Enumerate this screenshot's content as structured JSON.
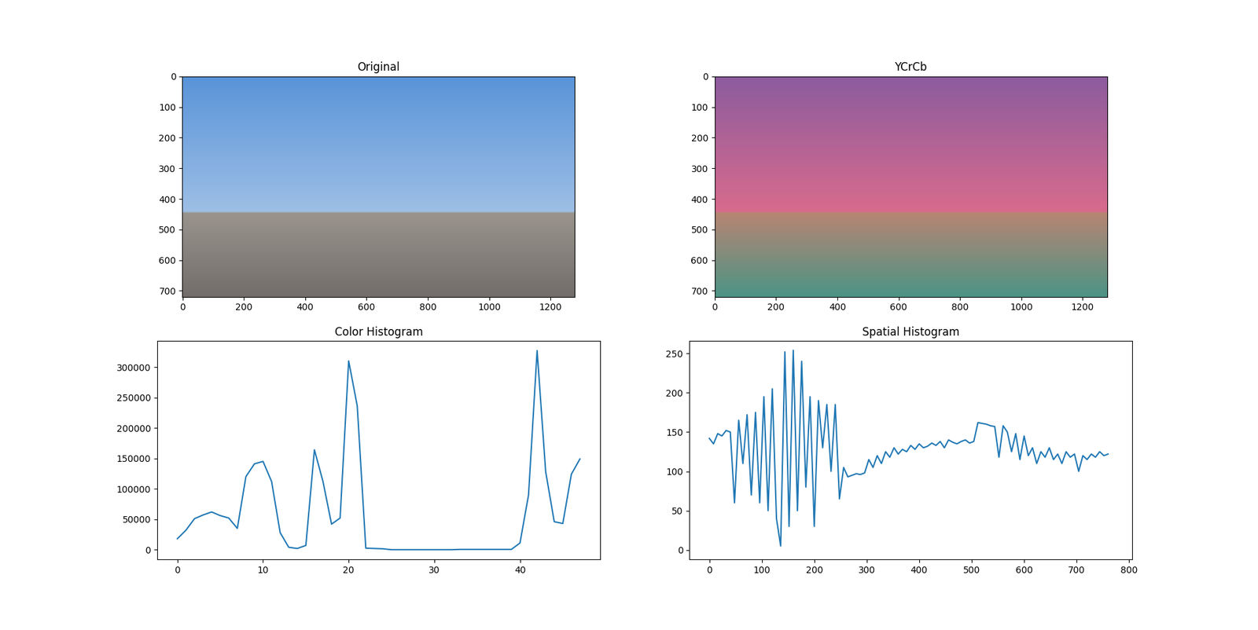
{
  "chart_data": [
    {
      "type": "image",
      "title": "Original",
      "xlim": [
        -0.5,
        1279.5
      ],
      "ylim": [
        719.5,
        -0.5
      ],
      "xticks": [
        0,
        200,
        400,
        600,
        800,
        1000,
        1200
      ],
      "yticks": [
        0,
        100,
        200,
        300,
        400,
        500,
        600,
        700
      ]
    },
    {
      "type": "image",
      "title": "YCrCb",
      "xlim": [
        -0.5,
        1279.5
      ],
      "ylim": [
        719.5,
        -0.5
      ],
      "xticks": [
        0,
        200,
        400,
        600,
        800,
        1000,
        1200
      ],
      "yticks": [
        0,
        100,
        200,
        300,
        400,
        500,
        600,
        700
      ]
    },
    {
      "type": "line",
      "title": "Color Histogram",
      "color": "#1f77b4",
      "x": [
        0,
        1,
        2,
        3,
        4,
        5,
        6,
        7,
        8,
        9,
        10,
        11,
        12,
        13,
        14,
        15,
        16,
        17,
        18,
        19,
        20,
        21,
        22,
        23,
        24,
        25,
        26,
        27,
        28,
        29,
        30,
        31,
        32,
        33,
        34,
        35,
        36,
        37,
        38,
        39,
        40,
        41,
        42,
        43,
        44,
        45,
        46,
        47
      ],
      "values": [
        18000,
        32000,
        51000,
        57000,
        62000,
        56000,
        52000,
        35000,
        120000,
        141000,
        145000,
        112000,
        28000,
        4000,
        2000,
        7000,
        164000,
        112000,
        42000,
        52000,
        310000,
        236000,
        2500,
        2000,
        1500,
        0,
        0,
        0,
        0,
        0,
        0,
        0,
        0,
        500,
        500,
        500,
        500,
        500,
        500,
        500,
        11000,
        90000,
        327000,
        128000,
        46000,
        43000,
        124000,
        149000
      ],
      "xlim": [
        -2.35,
        49.35
      ],
      "ylim": [
        -16000,
        343000
      ],
      "xticks": [
        0,
        10,
        20,
        30,
        40
      ],
      "yticks": [
        0,
        50000,
        100000,
        150000,
        200000,
        250000,
        300000
      ]
    },
    {
      "type": "line",
      "title": "Spatial Histogram",
      "color": "#1f77b4",
      "x": [
        0,
        8,
        16,
        24,
        32,
        40,
        48,
        56,
        64,
        72,
        80,
        88,
        96,
        104,
        112,
        120,
        128,
        136,
        144,
        152,
        160,
        168,
        176,
        184,
        192,
        200,
        208,
        216,
        224,
        232,
        240,
        248,
        256,
        264,
        272,
        280,
        288,
        296,
        304,
        312,
        320,
        328,
        336,
        344,
        352,
        360,
        368,
        376,
        384,
        392,
        400,
        408,
        416,
        424,
        432,
        440,
        448,
        456,
        464,
        472,
        480,
        488,
        496,
        504,
        512,
        520,
        528,
        536,
        544,
        552,
        560,
        568,
        576,
        584,
        592,
        600,
        608,
        616,
        624,
        632,
        640,
        648,
        656,
        664,
        672,
        680,
        688,
        696,
        704,
        712,
        720,
        728,
        736,
        744,
        752,
        760
      ],
      "values": [
        142,
        135,
        148,
        145,
        152,
        150,
        60,
        165,
        110,
        172,
        70,
        175,
        60,
        195,
        50,
        205,
        40,
        5,
        252,
        30,
        254,
        50,
        240,
        80,
        195,
        30,
        190,
        130,
        185,
        100,
        185,
        65,
        105,
        93,
        95,
        97,
        96,
        98,
        115,
        105,
        120,
        110,
        125,
        118,
        130,
        122,
        128,
        125,
        133,
        128,
        135,
        130,
        132,
        136,
        133,
        138,
        130,
        140,
        137,
        135,
        138,
        140,
        136,
        138,
        162,
        161,
        160,
        158,
        157,
        118,
        158,
        150,
        125,
        148,
        115,
        145,
        120,
        130,
        110,
        125,
        118,
        130,
        115,
        122,
        110,
        125,
        118,
        122,
        100,
        120,
        115,
        122,
        118,
        125,
        120,
        122
      ],
      "xlim": [
        -38,
        806
      ],
      "ylim": [
        -12,
        266
      ],
      "xticks": [
        0,
        100,
        200,
        300,
        400,
        500,
        600,
        700,
        800
      ],
      "yticks": [
        0,
        50,
        100,
        150,
        200,
        250
      ]
    }
  ]
}
